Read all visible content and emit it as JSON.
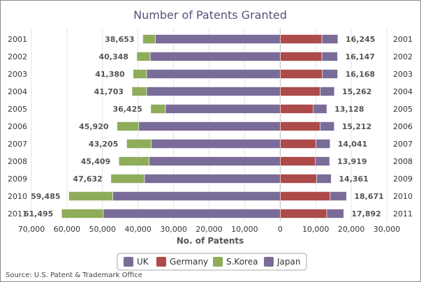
{
  "chart_data": {
    "type": "bar",
    "orientation": "horizontal",
    "title": "Number of Patents Granted",
    "xlabel": "No. of Patents",
    "source": "Source: U.S. Patent & Trademark Office",
    "categories": [
      "2001",
      "2002",
      "2003",
      "2004",
      "2005",
      "2006",
      "2007",
      "2008",
      "2009",
      "2010",
      "2011"
    ],
    "xlim": [
      -70000,
      30000
    ],
    "x_ticks": [
      -70000,
      -60000,
      -50000,
      -40000,
      -30000,
      -20000,
      -10000,
      0,
      10000,
      20000,
      30000
    ],
    "x_tick_labels": [
      "70,000",
      "60,000",
      "50,000",
      "40,000",
      "30,000",
      "20,000",
      "10,000",
      "0",
      "10,000",
      "20,000",
      "30,000"
    ],
    "grid": true,
    "legend_position": "bottom",
    "series": [
      {
        "name": "UK",
        "side": "right",
        "color": "#7a6c99",
        "values": [
          4500,
          4400,
          4300,
          4000,
          3800,
          4000,
          4000,
          4000,
          4100,
          4600,
          4800
        ]
      },
      {
        "name": "Germany",
        "side": "right",
        "color": "#ad4a4a",
        "values": [
          11745,
          11747,
          11868,
          11262,
          9328,
          11212,
          10041,
          9919,
          10261,
          14071,
          13092
        ]
      },
      {
        "name": "S.Korea",
        "side": "left",
        "color": "#8fac5a",
        "values": [
          3553,
          3748,
          3780,
          4103,
          4125,
          6120,
          6905,
          8509,
          9432,
          12385,
          11695
        ]
      },
      {
        "name": "Japan",
        "side": "left",
        "color": "#7a6c99",
        "values": [
          35100,
          36600,
          37600,
          37600,
          32300,
          39800,
          36300,
          36900,
          38200,
          47100,
          49800
        ]
      }
    ],
    "left_totals": [
      "38,653",
      "40,348",
      "41,380",
      "41,703",
      "36,425",
      "45,920",
      "43,205",
      "45,409",
      "47,632",
      "59,485",
      "61,495"
    ],
    "right_totals": [
      "16,245",
      "16,147",
      "16,168",
      "15,262",
      "13,128",
      "15,212",
      "14,041",
      "13,919",
      "14,361",
      "18,671",
      "17,892"
    ]
  }
}
